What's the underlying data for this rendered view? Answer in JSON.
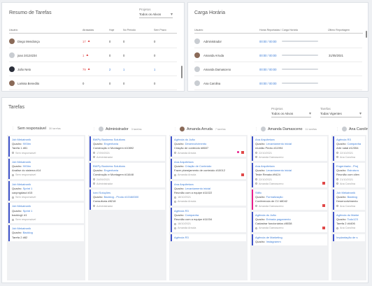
{
  "resumo": {
    "title": "Resumo de Tarefas",
    "filter": {
      "label": "Projetos",
      "value": "Todos os Ativos"
    },
    "columns": [
      "Usuário",
      "Atrasadas",
      "Hoje",
      "No Período",
      "Sem Prazo"
    ],
    "rows": [
      {
        "name": "Diego Mendonça",
        "atrasadas": "17",
        "hoje": "0",
        "periodo": "0",
        "semprazo": "0",
        "avatar": "photo"
      },
      {
        "name": "joao 24124234",
        "atrasadas": "1",
        "hoje": "0",
        "periodo": "0",
        "semprazo": "0",
        "avatar": "default"
      },
      {
        "name": "João Neto",
        "atrasadas": "79",
        "hoje": "2",
        "periodo": "1",
        "semprazo": "1",
        "avatar": "photo-dark"
      },
      {
        "name": "Larissa Benedito",
        "atrasadas": "0",
        "hoje": "0",
        "periodo": "0",
        "semprazo": "0",
        "avatar": "photo"
      }
    ]
  },
  "carga": {
    "title": "Carga Horária",
    "columns": [
      "Usuário",
      "Horas Reportadas / Carga Horária",
      "Último Reportagem"
    ],
    "rows": [
      {
        "name": "Administrador",
        "hours": "00:00 / 00:00",
        "last": "",
        "avatar": "default"
      },
      {
        "name": "Amanda Arruda",
        "hours": "00:00 / 00:00",
        "last": "31/05/2021",
        "avatar": "photo"
      },
      {
        "name": "Amanda Damasceno",
        "hours": "00:00 / 00:00",
        "last": "",
        "avatar": "default"
      },
      {
        "name": "Ana Carolina",
        "hours": "00:00 / 00:00",
        "last": "",
        "avatar": "default"
      }
    ]
  },
  "tarefas": {
    "title": "Tarefas",
    "filters": [
      {
        "label": "Projetos",
        "value": "Todos os Ativos"
      },
      {
        "label": "Tarefas",
        "value": "Todas Vigentes"
      }
    ],
    "columns": [
      {
        "name": "Sem responsável",
        "count": "30 tarefas",
        "avatar": "none",
        "cards": [
          {
            "title": "Job Mekatronik",
            "board": "9X5lm",
            "desc": "Tarefa 1 #81",
            "date": "",
            "resp": "Sem responsável",
            "color": "#3c50c8"
          },
          {
            "title": "Job Mekatronik",
            "board": "9X5lm",
            "desc": "Analise do sistema #14",
            "date": "",
            "resp": "Sem responsável",
            "color": "#3c50c8"
          },
          {
            "title": "Job Mekatronik",
            "board": "Sprint 1",
            "desc": "caxpngdasd #15",
            "date": "",
            "resp": "Sem responsável",
            "color": "#3c50c8"
          },
          {
            "title": "Job Mekatronik",
            "board": "Sprint 1",
            "desc": "backlog1 #1",
            "date": "",
            "resp": "Sem responsável",
            "color": "#3c50c8"
          },
          {
            "title": "Job Mekatronik",
            "board": "Backlog",
            "desc": "Tarefa 2 #82",
            "date": "",
            "resp": "",
            "color": "#3c50c8"
          }
        ]
      },
      {
        "name": "Administrador",
        "count": "3 tarefas",
        "avatar": "default",
        "cards": [
          {
            "title": "BWPy Business Solutions",
            "board": "Engenharia",
            "desc": "Construção e Montagem #10892",
            "date": "17/09/2021",
            "resp": "Administrador",
            "color": "#3c50c8"
          },
          {
            "title": "BWPy Business Solutions",
            "board": "Engenharia",
            "desc": "Construção e Montagem #11648",
            "date": "24/09/2021",
            "resp": "Administrador",
            "color": "#3c50c8"
          },
          {
            "title": "Iced Soluções",
            "board": "Backlog - Produ #10168300",
            "desc": "Consultoria #8218",
            "date": "",
            "resp": "Administrador",
            "color": "#3c50c8"
          }
        ]
      },
      {
        "name": "Amanda Arruda",
        "count": "7 tarefas",
        "avatar": "photo",
        "cards": [
          {
            "title": "Agência do João",
            "board": "Desenvolvimento",
            "desc": "Criação de conteúdo #8607",
            "date": "",
            "resp": "Amanda Arruda",
            "color": "#3c50c8",
            "dot": true,
            "flag": true
          },
          {
            "title": "Ana Arquitetura",
            "board": "Criação de Conteúdo",
            "desc": "Fazer planejamento de conteúdo #10012",
            "date": "",
            "resp": "Amanda Arruda",
            "color": "#3c50c8",
            "flag": true
          },
          {
            "title": "Ana Arquitetura",
            "board": "Levantamento inicial",
            "desc": "Reunião com a equipe #11022",
            "date": "18/10/2021",
            "resp": "Amanda Arruda",
            "color": "#3c50c8"
          },
          {
            "title": "Agência R3",
            "board": "Campanha",
            "desc": "Reunião com a equipe #11034",
            "date": "18/10/2021",
            "resp": "Amanda Arruda",
            "color": "#3c50c8"
          },
          {
            "title": "Agência R3",
            "board": "",
            "desc": "",
            "date": "",
            "resp": "",
            "color": "#3c50c8"
          }
        ]
      },
      {
        "name": "Amanda Damasceno",
        "count": "11 tarefas",
        "avatar": "default",
        "cards": [
          {
            "title": "Ana Arquitetura",
            "board": "Levantamento inicial",
            "desc": "reunião Pedro #11994",
            "date": "22/10/2021",
            "resp": "Amanda Damasceno",
            "color": "#3c50c8"
          },
          {
            "title": "Ana Arquitetura",
            "board": "Levantamento inicial",
            "desc": "Teste Renata #9424",
            "date": "22/10/2021",
            "resp": "Amanda Damasceno",
            "color": "#3c50c8",
            "flag": true
          },
          {
            "title": "Stilfo",
            "board": "Formalização",
            "desc": "Conferencia de CV #8042",
            "date": "",
            "resp": "Amanda Damasceno",
            "color": "#e81e8c",
            "flag": true
          },
          {
            "title": "Agência do João",
            "board": "Entrada pagamento",
            "desc": "Cadastrar funcionários #8038",
            "date": "",
            "resp": "Amanda Damasceno",
            "color": "#3c50c8",
            "flag": true
          },
          {
            "title": "Agência de Marketing",
            "board": "Instagramm",
            "desc": "",
            "date": "",
            "resp": "",
            "color": "#3c50c8"
          }
        ]
      },
      {
        "name": "Ana Carolina",
        "count": "",
        "avatar": "default",
        "cards": [
          {
            "title": "Agência R3",
            "board": "Campanha",
            "desc": "Arte natal #12354",
            "date": "22/10/2021",
            "resp": "Ana Carolina",
            "color": "#3c50c8"
          },
          {
            "title": "Engenharia - Proj",
            "board": "Estrutura",
            "desc": "Reunião com clien",
            "date": "21/10/2021",
            "resp": "Ana Carolina",
            "color": "#3c50c8"
          },
          {
            "title": "Job Mekatronik",
            "board": "Backlog",
            "desc": "Desenvolvimento",
            "date": "",
            "resp": "Ana Carolina",
            "color": "#3c50c8"
          },
          {
            "title": "Agência do Marke",
            "board": "Todo123",
            "desc": "Tarefa 2 #4406",
            "date": "",
            "resp": "Ana Carolina",
            "color": "#3c50c8"
          },
          {
            "title": "Implantação de s",
            "board": "",
            "desc": "",
            "date": "",
            "resp": "",
            "color": "#3c50c8"
          }
        ]
      }
    ]
  }
}
